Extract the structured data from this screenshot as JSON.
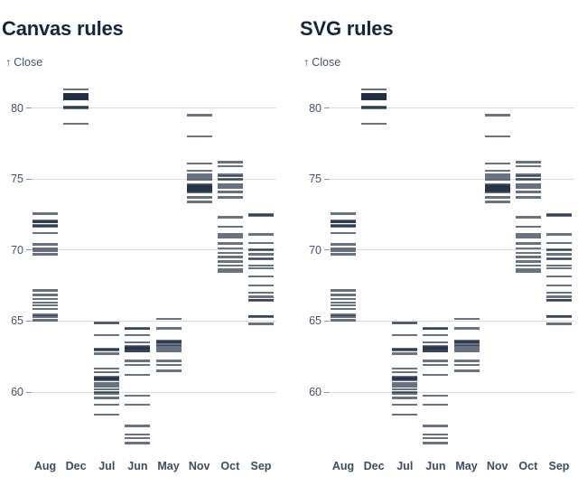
{
  "colors": {
    "background": "#ffffff",
    "title": "#14263e",
    "axis_text": "#42526b",
    "month_text": "#3d4d61",
    "gridline": "#d9dde3",
    "tick_mark": "#8d97a3",
    "strip_base": "#202f45",
    "strip_opacity": 0.68
  },
  "charts": [
    {
      "title": "Canvas rules",
      "y_axis_arrow": "↑",
      "y_axis_label": "Close"
    },
    {
      "title": "SVG rules",
      "y_axis_arrow": "↑",
      "y_axis_label": "Close"
    }
  ],
  "chart_data": {
    "type": "barcode-tick",
    "note_shared": "both charts render the identical dataset",
    "ylabel": "Close",
    "y_ticks": [
      60,
      65,
      70,
      75,
      80
    ],
    "ylim": [
      56.0,
      82.2
    ],
    "grid": true,
    "categories": [
      "Aug",
      "Dec",
      "Jul",
      "Jun",
      "May",
      "Nov",
      "Oct",
      "Sep"
    ],
    "series": [
      {
        "name": "Aug",
        "values": [
          72.55,
          72.05,
          72.0,
          71.95,
          71.75,
          71.7,
          71.65,
          71.2,
          70.4,
          70.1,
          69.95,
          69.7,
          67.15,
          66.85,
          66.55,
          66.3,
          66.1,
          65.85,
          65.45,
          65.3,
          65.05
        ]
      },
      {
        "name": "Dec",
        "values": [
          81.3,
          81.0,
          80.95,
          80.95,
          80.9,
          80.9,
          80.85,
          80.85,
          80.8,
          80.8,
          80.75,
          80.75,
          80.7,
          80.7,
          80.65,
          80.65,
          80.6,
          80.1,
          80.05,
          80.0,
          78.9
        ]
      },
      {
        "name": "Jul",
        "values": [
          64.9,
          64.85,
          64.0,
          63.05,
          63.0,
          62.95,
          62.7,
          61.65,
          61.4,
          61.05,
          61.0,
          60.95,
          60.9,
          60.85,
          60.6,
          60.4,
          60.2,
          60.0,
          59.9,
          59.6,
          59.1,
          58.4
        ]
      },
      {
        "name": "Jun",
        "values": [
          64.5,
          64.45,
          64.0,
          63.5,
          63.2,
          63.15,
          63.1,
          63.05,
          63.0,
          62.9,
          62.85,
          62.2,
          61.9,
          61.2,
          59.75,
          59.1,
          57.6,
          57.0,
          56.75,
          56.4
        ]
      },
      {
        "name": "May",
        "values": [
          65.15,
          64.5,
          63.6,
          63.55,
          63.5,
          63.45,
          63.3,
          63.25,
          63.1,
          62.9,
          62.2,
          61.9,
          61.5
        ]
      },
      {
        "name": "Nov",
        "values": [
          79.5,
          78.0,
          76.1,
          75.6,
          75.3,
          75.1,
          74.95,
          74.6,
          74.55,
          74.5,
          74.45,
          74.4,
          74.35,
          74.3,
          74.25,
          74.2,
          74.15,
          74.1,
          73.7,
          73.4
        ]
      },
      {
        "name": "Oct",
        "values": [
          76.2,
          75.9,
          75.3,
          75.2,
          75.0,
          74.95,
          74.6,
          74.4,
          74.1,
          73.7,
          72.3,
          71.65,
          71.1,
          70.9,
          70.45,
          70.1,
          69.8,
          69.5,
          69.2,
          68.9,
          68.65,
          68.5
        ]
      },
      {
        "name": "Sep",
        "values": [
          72.5,
          72.45,
          71.1,
          70.5,
          70.05,
          70.0,
          69.7,
          69.4,
          69.35,
          68.9,
          68.7,
          68.15,
          67.5,
          67.0,
          66.7,
          66.5,
          66.45,
          65.35,
          65.3,
          64.8
        ]
      }
    ]
  }
}
